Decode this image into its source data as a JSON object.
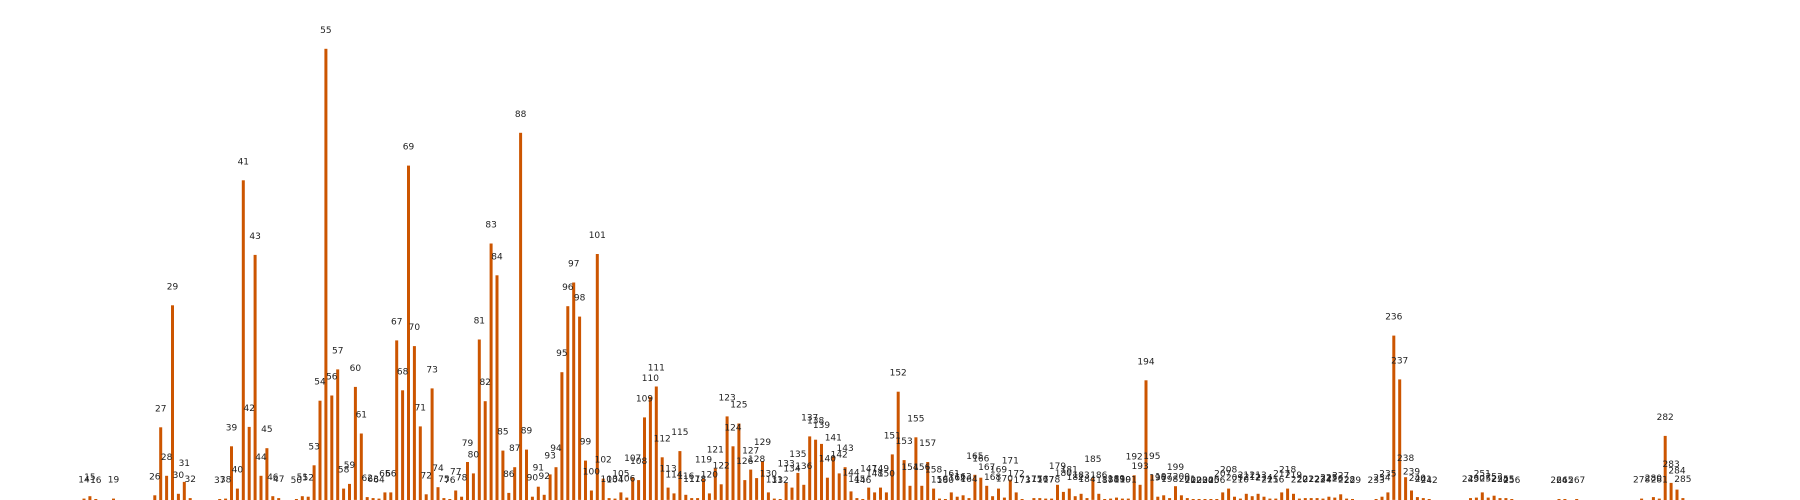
{
  "chart_data": {
    "type": "bar",
    "title": "",
    "xlabel": "",
    "ylabel": "",
    "grid": false,
    "axes_visible": false,
    "bar_color": "#cc5500",
    "ylim": [
      0,
      100
    ],
    "points": [
      {
        "label": "14",
        "x": 14,
        "value": 0.3
      },
      {
        "label": "15",
        "x": 15,
        "value": 0.8
      },
      {
        "label": "16",
        "x": 16,
        "value": 0.2
      },
      {
        "label": "19",
        "x": 19,
        "value": 0.3
      },
      {
        "label": "26",
        "x": 26,
        "value": 1.0
      },
      {
        "label": "27",
        "x": 27,
        "value": 15.3
      },
      {
        "label": "28",
        "x": 28,
        "value": 5.1
      },
      {
        "label": "29",
        "x": 29,
        "value": 41.0
      },
      {
        "label": "30",
        "x": 30,
        "value": 1.3
      },
      {
        "label": "31",
        "x": 31,
        "value": 3.8
      },
      {
        "label": "32",
        "x": 32,
        "value": 0.4
      },
      {
        "label": "37",
        "x": 37,
        "value": 0.2
      },
      {
        "label": "38",
        "x": 38,
        "value": 0.3
      },
      {
        "label": "39",
        "x": 39,
        "value": 11.3
      },
      {
        "label": "40",
        "x": 40,
        "value": 2.4
      },
      {
        "label": "41",
        "x": 41,
        "value": 67.3
      },
      {
        "label": "42",
        "x": 42,
        "value": 15.4
      },
      {
        "label": "43",
        "x": 43,
        "value": 51.6
      },
      {
        "label": "44",
        "x": 44,
        "value": 5.1
      },
      {
        "label": "45",
        "x": 45,
        "value": 10.9
      },
      {
        "label": "46",
        "x": 46,
        "value": 0.8
      },
      {
        "label": "47",
        "x": 47,
        "value": 0.4
      },
      {
        "label": "50",
        "x": 50,
        "value": 0.2
      },
      {
        "label": "51",
        "x": 51,
        "value": 0.8
      },
      {
        "label": "52",
        "x": 52,
        "value": 0.7
      },
      {
        "label": "53",
        "x": 53,
        "value": 7.3
      },
      {
        "label": "54",
        "x": 54,
        "value": 20.9
      },
      {
        "label": "55",
        "x": 55,
        "value": 95.0
      },
      {
        "label": "56",
        "x": 56,
        "value": 22.0
      },
      {
        "label": "57",
        "x": 57,
        "value": 27.5
      },
      {
        "label": "58",
        "x": 58,
        "value": 2.4
      },
      {
        "label": "59",
        "x": 59,
        "value": 3.4
      },
      {
        "label": "60",
        "x": 60,
        "value": 23.8
      },
      {
        "label": "61",
        "x": 61,
        "value": 14.0
      },
      {
        "label": "62",
        "x": 62,
        "value": 0.6
      },
      {
        "label": "63",
        "x": 63,
        "value": 0.4
      },
      {
        "label": "64",
        "x": 64,
        "value": 0.3
      },
      {
        "label": "65",
        "x": 65,
        "value": 1.6
      },
      {
        "label": "66",
        "x": 66,
        "value": 1.6
      },
      {
        "label": "67",
        "x": 67,
        "value": 33.6
      },
      {
        "label": "68",
        "x": 68,
        "value": 23.1
      },
      {
        "label": "69",
        "x": 69,
        "value": 70.4
      },
      {
        "label": "70",
        "x": 70,
        "value": 32.4
      },
      {
        "label": "71",
        "x": 71,
        "value": 15.5
      },
      {
        "label": "72",
        "x": 72,
        "value": 1.2
      },
      {
        "label": "73",
        "x": 73,
        "value": 23.5
      },
      {
        "label": "74",
        "x": 74,
        "value": 2.7
      },
      {
        "label": "75",
        "x": 75,
        "value": 0.4
      },
      {
        "label": "76",
        "x": 76,
        "value": 0.2
      },
      {
        "label": "77",
        "x": 77,
        "value": 2.0
      },
      {
        "label": "78",
        "x": 78,
        "value": 0.7
      },
      {
        "label": "79",
        "x": 79,
        "value": 8.0
      },
      {
        "label": "80",
        "x": 80,
        "value": 5.6
      },
      {
        "label": "81",
        "x": 81,
        "value": 33.8
      },
      {
        "label": "82",
        "x": 82,
        "value": 20.8
      },
      {
        "label": "83",
        "x": 83,
        "value": 54.0
      },
      {
        "label": "84",
        "x": 84,
        "value": 47.3
      },
      {
        "label": "85",
        "x": 85,
        "value": 10.4
      },
      {
        "label": "86",
        "x": 86,
        "value": 1.5
      },
      {
        "label": "87",
        "x": 87,
        "value": 6.9
      },
      {
        "label": "88",
        "x": 88,
        "value": 77.3
      },
      {
        "label": "89",
        "x": 89,
        "value": 10.6
      },
      {
        "label": "90",
        "x": 90,
        "value": 0.7
      },
      {
        "label": "91",
        "x": 91,
        "value": 2.8
      },
      {
        "label": "92",
        "x": 92,
        "value": 1.1
      },
      {
        "label": "93",
        "x": 93,
        "value": 5.4
      },
      {
        "label": "94",
        "x": 94,
        "value": 6.9
      },
      {
        "label": "95",
        "x": 95,
        "value": 26.9
      },
      {
        "label": "96",
        "x": 96,
        "value": 40.8
      },
      {
        "label": "97",
        "x": 97,
        "value": 45.8
      },
      {
        "label": "98",
        "x": 98,
        "value": 38.6
      },
      {
        "label": "99",
        "x": 99,
        "value": 8.3
      },
      {
        "label": "100",
        "x": 100,
        "value": 2.0
      },
      {
        "label": "101",
        "x": 101,
        "value": 51.8
      },
      {
        "label": "102",
        "x": 102,
        "value": 4.5
      },
      {
        "label": "103",
        "x": 103,
        "value": 0.4
      },
      {
        "label": "104",
        "x": 104,
        "value": 0.3
      },
      {
        "label": "105",
        "x": 105,
        "value": 1.6
      },
      {
        "label": "106",
        "x": 106,
        "value": 0.5
      },
      {
        "label": "107",
        "x": 107,
        "value": 4.8
      },
      {
        "label": "108",
        "x": 108,
        "value": 4.2
      },
      {
        "label": "109",
        "x": 109,
        "value": 17.4
      },
      {
        "label": "110",
        "x": 110,
        "value": 21.7
      },
      {
        "label": "111",
        "x": 111,
        "value": 23.9
      },
      {
        "label": "112",
        "x": 112,
        "value": 9.0
      },
      {
        "label": "113",
        "x": 113,
        "value": 2.6
      },
      {
        "label": "114",
        "x": 114,
        "value": 1.4
      },
      {
        "label": "115",
        "x": 115,
        "value": 10.3
      },
      {
        "label": "116",
        "x": 116,
        "value": 1.1
      },
      {
        "label": "117",
        "x": 117,
        "value": 0.4
      },
      {
        "label": "118",
        "x": 118,
        "value": 0.4
      },
      {
        "label": "119",
        "x": 119,
        "value": 4.5
      },
      {
        "label": "120",
        "x": 120,
        "value": 1.4
      },
      {
        "label": "121",
        "x": 121,
        "value": 6.6
      },
      {
        "label": "122",
        "x": 122,
        "value": 3.3
      },
      {
        "label": "123",
        "x": 123,
        "value": 17.6
      },
      {
        "label": "124",
        "x": 124,
        "value": 11.3
      },
      {
        "label": "125",
        "x": 125,
        "value": 16.1
      },
      {
        "label": "126",
        "x": 126,
        "value": 4.2
      },
      {
        "label": "127",
        "x": 127,
        "value": 6.4
      },
      {
        "label": "128",
        "x": 128,
        "value": 4.6
      },
      {
        "label": "129",
        "x": 129,
        "value": 8.2
      },
      {
        "label": "130",
        "x": 130,
        "value": 1.6
      },
      {
        "label": "131",
        "x": 131,
        "value": 0.3
      },
      {
        "label": "132",
        "x": 132,
        "value": 0.2
      },
      {
        "label": "133",
        "x": 133,
        "value": 3.7
      },
      {
        "label": "134",
        "x": 134,
        "value": 2.6
      },
      {
        "label": "135",
        "x": 135,
        "value": 5.7
      },
      {
        "label": "136",
        "x": 136,
        "value": 3.2
      },
      {
        "label": "137",
        "x": 137,
        "value": 13.4
      },
      {
        "label": "138",
        "x": 138,
        "value": 12.7
      },
      {
        "label": "139",
        "x": 139,
        "value": 11.8
      },
      {
        "label": "140",
        "x": 140,
        "value": 4.7
      },
      {
        "label": "141",
        "x": 141,
        "value": 9.2
      },
      {
        "label": "142",
        "x": 142,
        "value": 5.6
      },
      {
        "label": "143",
        "x": 143,
        "value": 6.9
      },
      {
        "label": "144",
        "x": 144,
        "value": 1.8
      },
      {
        "label": "145",
        "x": 145,
        "value": 0.4
      },
      {
        "label": "146",
        "x": 146,
        "value": 0.2
      },
      {
        "label": "147",
        "x": 147,
        "value": 2.6
      },
      {
        "label": "148",
        "x": 148,
        "value": 1.6
      },
      {
        "label": "149",
        "x": 149,
        "value": 2.6
      },
      {
        "label": "150",
        "x": 150,
        "value": 1.6
      },
      {
        "label": "151",
        "x": 151,
        "value": 9.6
      },
      {
        "label": "152",
        "x": 152,
        "value": 22.8
      },
      {
        "label": "153",
        "x": 153,
        "value": 8.4
      },
      {
        "label": "154",
        "x": 154,
        "value": 3.0
      },
      {
        "label": "155",
        "x": 155,
        "value": 13.2
      },
      {
        "label": "156",
        "x": 156,
        "value": 3.0
      },
      {
        "label": "157",
        "x": 157,
        "value": 8.0
      },
      {
        "label": "158",
        "x": 158,
        "value": 2.4
      },
      {
        "label": "159",
        "x": 159,
        "value": 0.3
      },
      {
        "label": "160",
        "x": 160,
        "value": 0.2
      },
      {
        "label": "161",
        "x": 161,
        "value": 1.6
      },
      {
        "label": "162",
        "x": 162,
        "value": 0.7
      },
      {
        "label": "163",
        "x": 163,
        "value": 1.0
      },
      {
        "label": "164",
        "x": 164,
        "value": 0.4
      },
      {
        "label": "165",
        "x": 165,
        "value": 5.3
      },
      {
        "label": "166",
        "x": 166,
        "value": 4.7
      },
      {
        "label": "167",
        "x": 167,
        "value": 3.0
      },
      {
        "label": "168",
        "x": 168,
        "value": 0.8
      },
      {
        "label": "169",
        "x": 169,
        "value": 2.4
      },
      {
        "label": "170",
        "x": 170,
        "value": 0.5
      },
      {
        "label": "171",
        "x": 171,
        "value": 4.3
      },
      {
        "label": "172",
        "x": 172,
        "value": 1.6
      },
      {
        "label": "173",
        "x": 173,
        "value": 0.2
      },
      {
        "label": "175",
        "x": 175,
        "value": 0.4
      },
      {
        "label": "176",
        "x": 176,
        "value": 0.4
      },
      {
        "label": "177",
        "x": 177,
        "value": 0.3
      },
      {
        "label": "178",
        "x": 178,
        "value": 0.3
      },
      {
        "label": "179",
        "x": 179,
        "value": 3.2
      },
      {
        "label": "180",
        "x": 180,
        "value": 1.7
      },
      {
        "label": "181",
        "x": 181,
        "value": 2.4
      },
      {
        "label": "182",
        "x": 182,
        "value": 0.8
      },
      {
        "label": "183",
        "x": 183,
        "value": 1.3
      },
      {
        "label": "184",
        "x": 184,
        "value": 0.4
      },
      {
        "label": "185",
        "x": 185,
        "value": 4.6
      },
      {
        "label": "186",
        "x": 186,
        "value": 1.3
      },
      {
        "label": "187",
        "x": 187,
        "value": 0.2
      },
      {
        "label": "188",
        "x": 188,
        "value": 0.3
      },
      {
        "label": "189",
        "x": 189,
        "value": 0.5
      },
      {
        "label": "190",
        "x": 190,
        "value": 0.3
      },
      {
        "label": "191",
        "x": 191,
        "value": 0.3
      },
      {
        "label": "192",
        "x": 192,
        "value": 5.2
      },
      {
        "label": "193",
        "x": 193,
        "value": 3.2
      },
      {
        "label": "194",
        "x": 194,
        "value": 25.2
      },
      {
        "label": "195",
        "x": 195,
        "value": 5.3
      },
      {
        "label": "196",
        "x": 196,
        "value": 0.7
      },
      {
        "label": "197",
        "x": 197,
        "value": 1.0
      },
      {
        "label": "198",
        "x": 198,
        "value": 0.4
      },
      {
        "label": "199",
        "x": 199,
        "value": 2.9
      },
      {
        "label": "200",
        "x": 200,
        "value": 1.0
      },
      {
        "label": "201",
        "x": 201,
        "value": 0.4
      },
      {
        "label": "202",
        "x": 202,
        "value": 0.2
      },
      {
        "label": "203",
        "x": 203,
        "value": 0.2
      },
      {
        "label": "204",
        "x": 204,
        "value": 0.2
      },
      {
        "label": "205",
        "x": 205,
        "value": 0.2
      },
      {
        "label": "206",
        "x": 206,
        "value": 0.2
      },
      {
        "label": "207",
        "x": 207,
        "value": 1.6
      },
      {
        "label": "208",
        "x": 208,
        "value": 2.4
      },
      {
        "label": "209",
        "x": 209,
        "value": 0.7
      },
      {
        "label": "210",
        "x": 210,
        "value": 0.3
      },
      {
        "label": "211",
        "x": 211,
        "value": 1.3
      },
      {
        "label": "212",
        "x": 212,
        "value": 0.8
      },
      {
        "label": "213",
        "x": 213,
        "value": 1.3
      },
      {
        "label": "214",
        "x": 214,
        "value": 0.7
      },
      {
        "label": "215",
        "x": 215,
        "value": 0.3
      },
      {
        "label": "216",
        "x": 216,
        "value": 0.3
      },
      {
        "label": "217",
        "x": 217,
        "value": 1.6
      },
      {
        "label": "218",
        "x": 218,
        "value": 2.4
      },
      {
        "label": "219",
        "x": 219,
        "value": 1.3
      },
      {
        "label": "220",
        "x": 220,
        "value": 0.3
      },
      {
        "label": "221",
        "x": 221,
        "value": 0.4
      },
      {
        "label": "222",
        "x": 222,
        "value": 0.4
      },
      {
        "label": "223",
        "x": 223,
        "value": 0.4
      },
      {
        "label": "224",
        "x": 224,
        "value": 0.3
      },
      {
        "label": "225",
        "x": 225,
        "value": 0.7
      },
      {
        "label": "226",
        "x": 226,
        "value": 0.5
      },
      {
        "label": "227",
        "x": 227,
        "value": 1.2
      },
      {
        "label": "228",
        "x": 228,
        "value": 0.3
      },
      {
        "label": "229",
        "x": 229,
        "value": 0.2
      },
      {
        "label": "233",
        "x": 233,
        "value": 0.2
      },
      {
        "label": "234",
        "x": 234,
        "value": 0.7
      },
      {
        "label": "235",
        "x": 235,
        "value": 1.6
      },
      {
        "label": "236",
        "x": 236,
        "value": 34.6
      },
      {
        "label": "237",
        "x": 237,
        "value": 25.4
      },
      {
        "label": "238",
        "x": 238,
        "value": 4.8
      },
      {
        "label": "239",
        "x": 239,
        "value": 2.0
      },
      {
        "label": "240",
        "x": 240,
        "value": 0.6
      },
      {
        "label": "241",
        "x": 241,
        "value": 0.4
      },
      {
        "label": "242",
        "x": 242,
        "value": 0.2
      },
      {
        "label": "249",
        "x": 249,
        "value": 0.4
      },
      {
        "label": "250",
        "x": 250,
        "value": 0.5
      },
      {
        "label": "251",
        "x": 251,
        "value": 1.6
      },
      {
        "label": "252",
        "x": 252,
        "value": 0.5
      },
      {
        "label": "253",
        "x": 253,
        "value": 0.9
      },
      {
        "label": "254",
        "x": 254,
        "value": 0.4
      },
      {
        "label": "255",
        "x": 255,
        "value": 0.4
      },
      {
        "label": "256",
        "x": 256,
        "value": 0.2
      },
      {
        "label": "264",
        "x": 264,
        "value": 0.2
      },
      {
        "label": "265",
        "x": 265,
        "value": 0.2
      },
      {
        "label": "267",
        "x": 267,
        "value": 0.2
      },
      {
        "label": "278",
        "x": 278,
        "value": 0.3
      },
      {
        "label": "280",
        "x": 280,
        "value": 0.6
      },
      {
        "label": "281",
        "x": 281,
        "value": 0.3
      },
      {
        "label": "282",
        "x": 282,
        "value": 13.5
      },
      {
        "label": "283",
        "x": 283,
        "value": 3.6
      },
      {
        "label": "284",
        "x": 284,
        "value": 2.2
      },
      {
        "label": "285",
        "x": 285,
        "value": 0.4
      }
    ]
  }
}
